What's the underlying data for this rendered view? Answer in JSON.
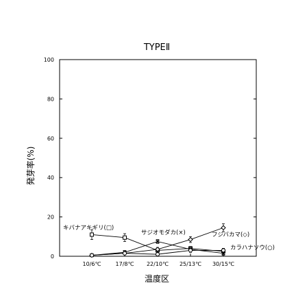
{
  "chart_data": {
    "type": "line",
    "title": "TYPEⅡ",
    "xlabel": "温度区",
    "ylabel": "発芽率(%)",
    "categories": [
      "10/6℃",
      "17/8℃",
      "22/10℃",
      "25/13℃",
      "30/15℃"
    ],
    "ylim": [
      0,
      100
    ],
    "yticks": [
      0,
      20,
      40,
      60,
      80,
      100
    ],
    "grid": false,
    "series": [
      {
        "name": "キバナアキギリ(□)",
        "marker": "square",
        "values": [
          11,
          9.5,
          3,
          4,
          2.5
        ],
        "errors": [
          2.5,
          2,
          1,
          1,
          1.5
        ]
      },
      {
        "name": "サジオモダカ(×)",
        "marker": "x",
        "values": [
          0.5,
          2,
          7.5,
          3.5,
          1.5
        ],
        "errors": [
          0.5,
          1,
          1,
          1,
          1
        ]
      },
      {
        "name": "フジバカマ(◇)",
        "marker": "diamond",
        "values": [
          0.5,
          1.5,
          3.5,
          8.5,
          14.5
        ],
        "errors": [
          0.5,
          0.8,
          1,
          1.5,
          2
        ]
      },
      {
        "name": "カラハナソウ(○)",
        "marker": "circle",
        "values": [
          0.5,
          1.5,
          1,
          3,
          3
        ],
        "errors": [
          0.3,
          0.5,
          0.5,
          1,
          1
        ]
      }
    ]
  }
}
